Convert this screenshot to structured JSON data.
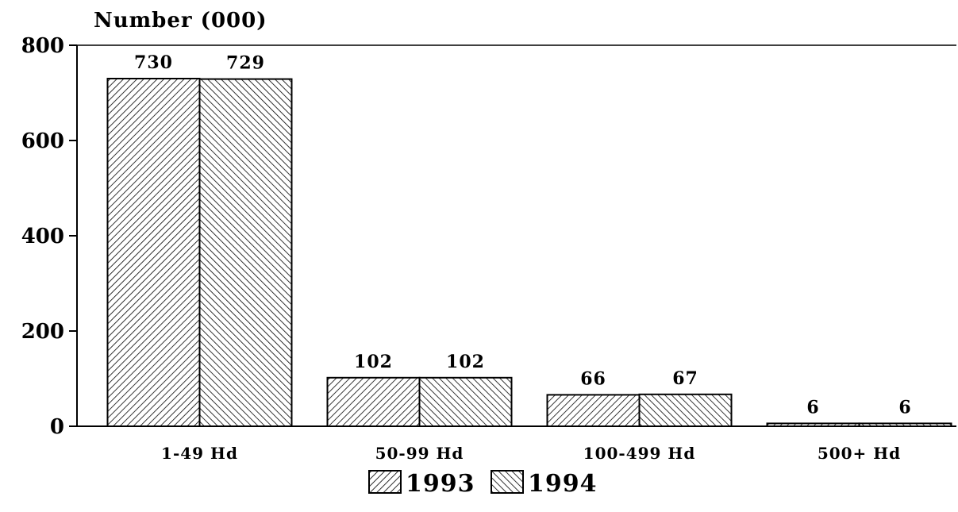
{
  "chart_data": {
    "type": "bar",
    "title": "Number (000)",
    "xlabel": "",
    "ylabel": "",
    "categories": [
      "1-49 Hd",
      "50-99 Hd",
      "100-499 Hd",
      "500+ Hd"
    ],
    "series": [
      {
        "name": "1993",
        "values": [
          730,
          102,
          66,
          6
        ],
        "pattern": "hatch-forward"
      },
      {
        "name": "1994",
        "values": [
          729,
          102,
          67,
          6
        ],
        "pattern": "hatch-backward"
      }
    ],
    "data_labels": [
      [
        "730",
        "102",
        "66",
        "6"
      ],
      [
        "729",
        "102",
        "67",
        "6"
      ]
    ],
    "ylim": [
      0,
      800
    ],
    "yticks": [
      0,
      200,
      400,
      600,
      800
    ],
    "ytick_labels": [
      "0",
      "200",
      "400",
      "600",
      "800"
    ],
    "grid": false,
    "legend_position": "bottom-center",
    "colors": {
      "bar_fill": "#ffffff",
      "bar_stroke": "#000000",
      "hatch": "#000000"
    }
  }
}
